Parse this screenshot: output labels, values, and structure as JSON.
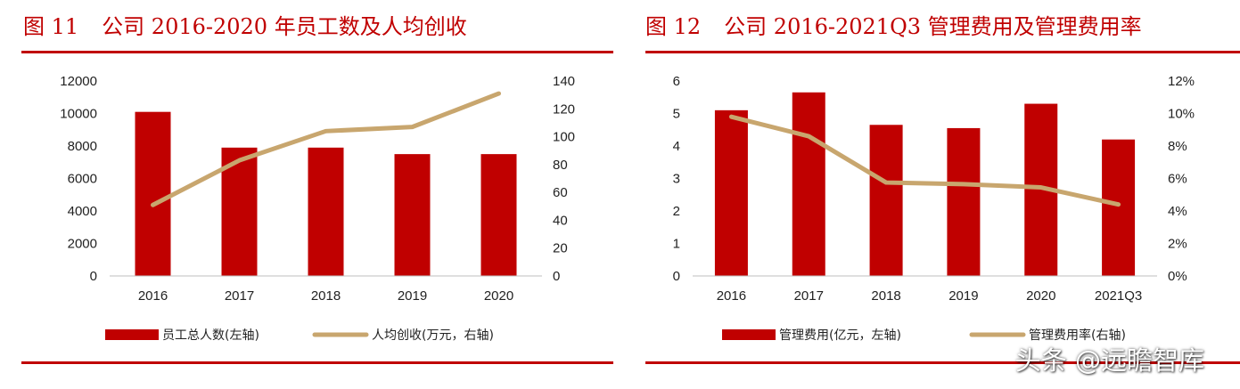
{
  "charts": {
    "left": {
      "fig_number": "图 11",
      "fig_title": "公司 2016-2020 年员工数及人均创收"
    },
    "right": {
      "fig_number": "图 12",
      "fig_title": "公司 2016-2021Q3 管理费用及管理费用率"
    }
  },
  "watermark": "头条 @远瞻智库",
  "colors": {
    "bar": "#c00000",
    "line": "#c8a66e",
    "accent": "#c00000"
  },
  "chart_data": [
    {
      "type": "bar",
      "categories": [
        "2016",
        "2017",
        "2018",
        "2019",
        "2020"
      ],
      "series": [
        {
          "name": "员工总人数(左轴)",
          "type": "bar",
          "axis": "left",
          "values": [
            10100,
            7900,
            7900,
            7500,
            7500
          ]
        },
        {
          "name": "人均创收(万元，右轴)",
          "type": "line",
          "axis": "right",
          "values": [
            51,
            83,
            104,
            107,
            131
          ]
        }
      ],
      "y_left": {
        "min": 0,
        "max": 12000,
        "ticks": [
          "0",
          "2000",
          "4000",
          "6000",
          "8000",
          "10000",
          "12000"
        ]
      },
      "y_right": {
        "min": 0,
        "max": 140,
        "ticks": [
          "0",
          "20",
          "40",
          "60",
          "80",
          "100",
          "120",
          "140"
        ]
      },
      "grid": false,
      "legend_position": "bottom"
    },
    {
      "type": "bar",
      "categories": [
        "2016",
        "2017",
        "2018",
        "2019",
        "2020",
        "2021Q3"
      ],
      "series": [
        {
          "name": "管理费用(亿元，左轴)",
          "type": "bar",
          "axis": "left",
          "values": [
            5.1,
            5.65,
            4.65,
            4.55,
            5.3,
            4.2
          ]
        },
        {
          "name": "管理费用率(右轴)",
          "type": "line",
          "axis": "right",
          "values": [
            9.8,
            8.6,
            5.75,
            5.65,
            5.45,
            4.4
          ]
        }
      ],
      "y_left": {
        "min": 0,
        "max": 6,
        "ticks": [
          "0",
          "1",
          "2",
          "3",
          "4",
          "5",
          "6"
        ]
      },
      "y_right": {
        "min": 0,
        "max": 12,
        "ticks": [
          "0%",
          "2%",
          "4%",
          "6%",
          "8%",
          "10%",
          "12%"
        ]
      },
      "grid": false,
      "legend_position": "bottom"
    }
  ]
}
